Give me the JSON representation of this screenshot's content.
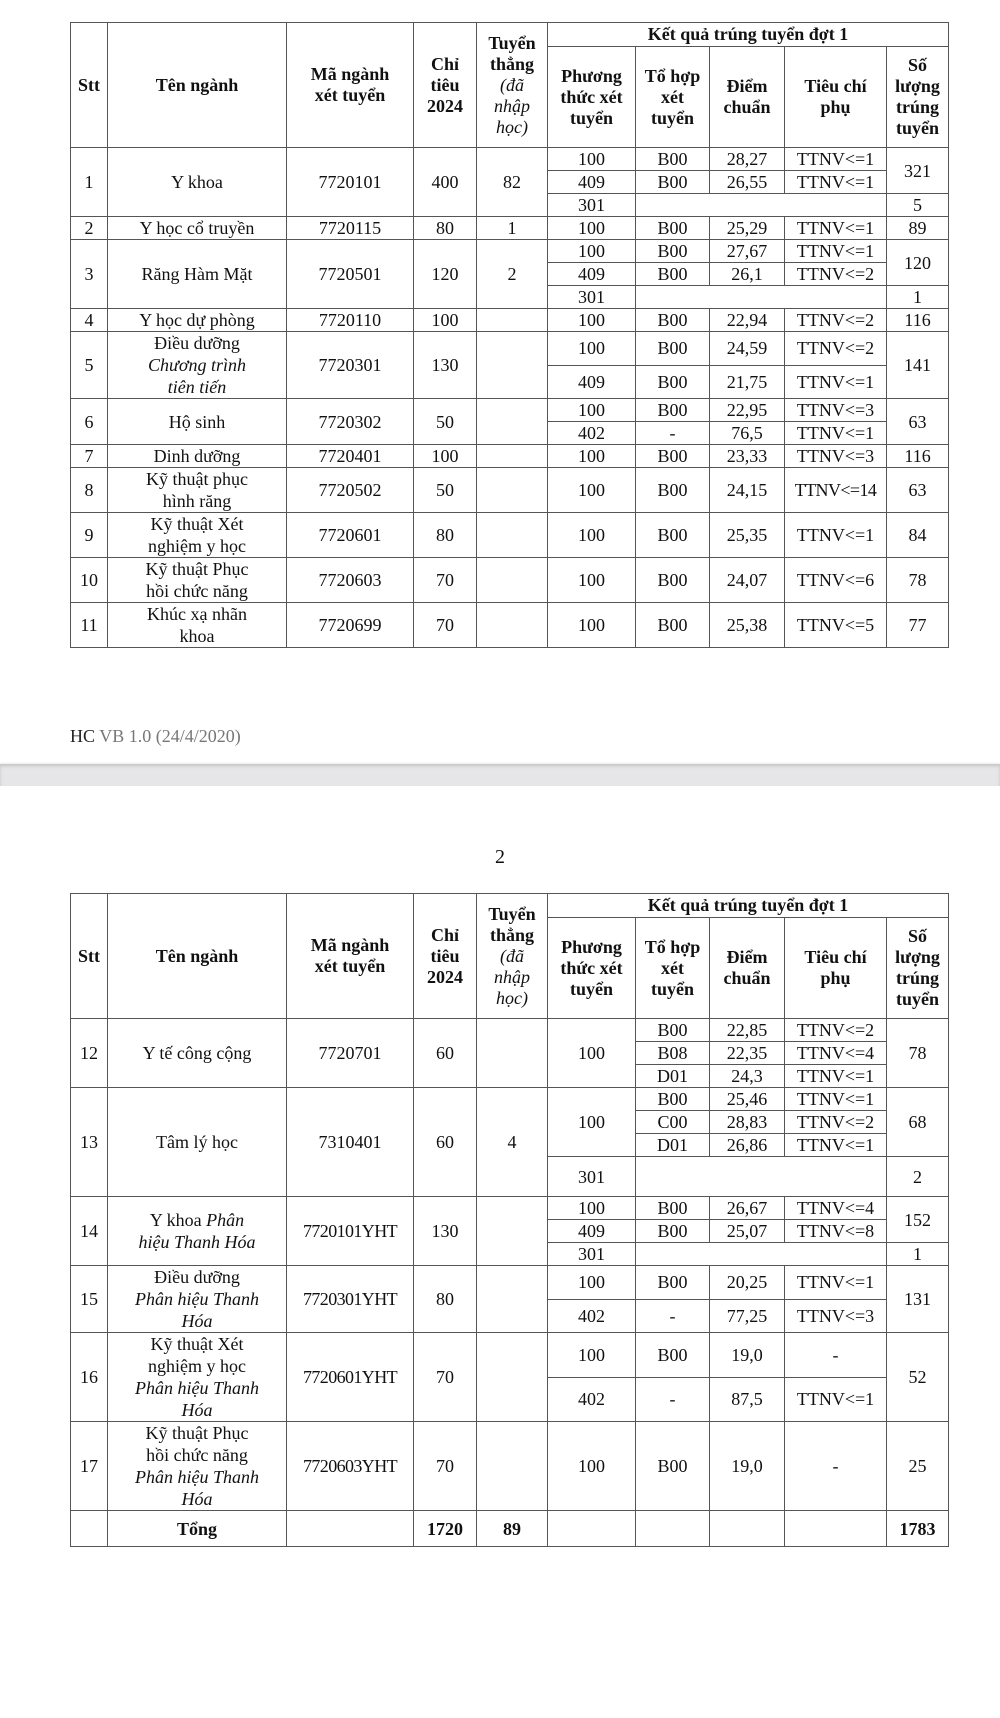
{
  "header": {
    "stt": "Stt",
    "name": "Tên ngành",
    "code": [
      "Mã ngành",
      "xét tuyển"
    ],
    "quota": [
      "Chỉ",
      "tiêu",
      "2024"
    ],
    "direct": [
      "Tuyển",
      "thẳng"
    ],
    "direct_italic": [
      "(đã",
      "nhập",
      "học)"
    ],
    "result_group": "Kết quả trúng tuyển đợt 1",
    "method": [
      "Phương",
      "thức xét",
      "tuyển"
    ],
    "combo": [
      "Tổ hợp",
      "xét",
      "tuyển"
    ],
    "score": [
      "Điểm",
      "chuẩn"
    ],
    "criteria": [
      "Tiêu chí",
      "phụ"
    ],
    "count": [
      "Số",
      "lượng",
      "trúng",
      "tuyển"
    ]
  },
  "table1": [
    {
      "stt": "1",
      "name": [
        {
          "t": "Y khoa"
        }
      ],
      "code": "7720101",
      "quota": "400",
      "direct": "82",
      "subs": [
        {
          "method": "100",
          "combo": "B00",
          "score": "28,27",
          "criteria": "TTNV<=1",
          "count": "321",
          "count_span": 2
        },
        {
          "method": "409",
          "combo": "B00",
          "score": "26,55",
          "criteria": "TTNV<=1"
        },
        {
          "method": "301",
          "merged": true,
          "count": "5"
        }
      ]
    },
    {
      "stt": "2",
      "name": [
        {
          "t": "Y học cổ truyền"
        }
      ],
      "code": "7720115",
      "quota": "80",
      "direct": "1",
      "subs": [
        {
          "method": "100",
          "combo": "B00",
          "score": "25,29",
          "criteria": "TTNV<=1",
          "count": "89"
        }
      ]
    },
    {
      "stt": "3",
      "name": [
        {
          "t": "Răng Hàm Mặt"
        }
      ],
      "code": "7720501",
      "quota": "120",
      "direct": "2",
      "subs": [
        {
          "method": "100",
          "combo": "B00",
          "score": "27,67",
          "criteria": "TTNV<=1",
          "count": "120",
          "count_span": 2
        },
        {
          "method": "409",
          "combo": "B00",
          "score": "26,1",
          "criteria": "TTNV<=2"
        },
        {
          "method": "301",
          "merged": true,
          "count": "1"
        }
      ]
    },
    {
      "stt": "4",
      "name": [
        {
          "t": "Y học dự phòng"
        }
      ],
      "code": "7720110",
      "quota": "100",
      "direct": "",
      "subs": [
        {
          "method": "100",
          "combo": "B00",
          "score": "22,94",
          "criteria": "TTNV<=2",
          "count": "116"
        }
      ]
    },
    {
      "stt": "5",
      "name": [
        {
          "t": "Điều dưỡng"
        },
        {
          "t": "Chương trình",
          "i": true
        },
        {
          "t": "tiên tiến",
          "i": true
        }
      ],
      "code": "7720301",
      "quota": "130",
      "direct": "",
      "subs": [
        {
          "method": "100",
          "combo": "B00",
          "score": "24,59",
          "criteria": "TTNV<=2",
          "count": "141",
          "count_span": 2
        },
        {
          "method": "409",
          "combo": "B00",
          "score": "21,75",
          "criteria": "TTNV<=1"
        }
      ]
    },
    {
      "stt": "6",
      "name": [
        {
          "t": "Hộ sinh"
        }
      ],
      "code": "7720302",
      "quota": "50",
      "direct": "",
      "subs": [
        {
          "method": "100",
          "combo": "B00",
          "score": "22,95",
          "criteria": "TTNV<=3",
          "count": "63",
          "count_span": 2
        },
        {
          "method": "402",
          "combo": "-",
          "score": "76,5",
          "criteria": "TTNV<=1"
        }
      ]
    },
    {
      "stt": "7",
      "name": [
        {
          "t": "Dinh dưỡng"
        }
      ],
      "code": "7720401",
      "quota": "100",
      "direct": "",
      "subs": [
        {
          "method": "100",
          "combo": "B00",
          "score": "23,33",
          "criteria": "TTNV<=3",
          "count": "116"
        }
      ]
    },
    {
      "stt": "8",
      "name": [
        {
          "t": "Kỹ thuật phục"
        },
        {
          "t": "hình răng"
        }
      ],
      "code": "7720502",
      "quota": "50",
      "direct": "",
      "subs": [
        {
          "method": "100",
          "combo": "B00",
          "score": "24,15",
          "criteria": "TTNV<=14",
          "count": "63"
        }
      ]
    },
    {
      "stt": "9",
      "name": [
        {
          "t": "Kỹ thuật Xét"
        },
        {
          "t": "nghiệm y học"
        }
      ],
      "code": "7720601",
      "quota": "80",
      "direct": "",
      "subs": [
        {
          "method": "100",
          "combo": "B00",
          "score": "25,35",
          "criteria": "TTNV<=1",
          "count": "84"
        }
      ]
    },
    {
      "stt": "10",
      "name": [
        {
          "t": "Kỹ thuật Phục"
        },
        {
          "t": "hồi chức năng"
        }
      ],
      "code": "7720603",
      "quota": "70",
      "direct": "",
      "subs": [
        {
          "method": "100",
          "combo": "B00",
          "score": "24,07",
          "criteria": "TTNV<=6",
          "count": "78"
        }
      ]
    },
    {
      "stt": "11",
      "name": [
        {
          "t": "Khúc xạ nhãn"
        },
        {
          "t": "khoa"
        }
      ],
      "code": "7720699",
      "quota": "70",
      "direct": "",
      "subs": [
        {
          "method": "100",
          "combo": "B00",
          "score": "25,38",
          "criteria": "TTNV<=5",
          "count": "77"
        }
      ]
    }
  ],
  "footer": {
    "code": "HC",
    "version": "VB 1.0 (24/4/2020)"
  },
  "page_number": "2",
  "table2": [
    {
      "stt": "12",
      "name": [
        {
          "t": "Y tế công cộng"
        }
      ],
      "code": "7720701",
      "quota": "60",
      "direct": "",
      "subs": [
        {
          "method": "100",
          "method_span": 3,
          "combo": "B00",
          "score": "22,85",
          "criteria": "TTNV<=2",
          "count": "78",
          "count_span": 3
        },
        {
          "combo": "B08",
          "score": "22,35",
          "criteria": "TTNV<=4"
        },
        {
          "combo": "D01",
          "score": "24,3",
          "criteria": "TTNV<=1"
        }
      ]
    },
    {
      "stt": "13",
      "name": [
        {
          "t": "Tâm lý học"
        }
      ],
      "code": "7310401",
      "quota": "60",
      "direct": "4",
      "subs": [
        {
          "method": "100",
          "method_span": 3,
          "combo": "B00",
          "score": "25,46",
          "criteria": "TTNV<=1",
          "count": "68",
          "count_span": 3
        },
        {
          "combo": "C00",
          "score": "28,83",
          "criteria": "TTNV<=2"
        },
        {
          "combo": "D01",
          "score": "26,86",
          "criteria": "TTNV<=1"
        },
        {
          "method": "301",
          "merged": true,
          "count": "2",
          "tall": true
        }
      ]
    },
    {
      "stt": "14",
      "name": [
        {
          "t": "Y khoa "
        },
        {
          "t": "Phân",
          "i": true,
          "inline": true
        },
        {
          "t": "hiệu Thanh Hóa",
          "i": true
        }
      ],
      "code": "7720101YHT",
      "quota": "130",
      "direct": "",
      "subs": [
        {
          "method": "100",
          "combo": "B00",
          "score": "26,67",
          "criteria": "TTNV<=4",
          "count": "152",
          "count_span": 2
        },
        {
          "method": "409",
          "combo": "B00",
          "score": "25,07",
          "criteria": "TTNV<=8"
        },
        {
          "method": "301",
          "merged": true,
          "count": "1"
        }
      ]
    },
    {
      "stt": "15",
      "name": [
        {
          "t": "Điều dưỡng"
        },
        {
          "t": "Phân hiệu Thanh",
          "i": true
        },
        {
          "t": "Hóa",
          "i": true
        }
      ],
      "code": "7720301YHT",
      "quota": "80",
      "direct": "",
      "subs": [
        {
          "method": "100",
          "combo": "B00",
          "score": "20,25",
          "criteria": "TTNV<=1",
          "count": "131",
          "count_span": 2
        },
        {
          "method": "402",
          "combo": "-",
          "score": "77,25",
          "criteria": "TTNV<=3"
        }
      ]
    },
    {
      "stt": "16",
      "name": [
        {
          "t": "Kỹ thuật Xét"
        },
        {
          "t": "nghiệm y học"
        },
        {
          "t": "Phân hiệu Thanh",
          "i": true
        },
        {
          "t": "Hóa",
          "i": true
        }
      ],
      "code": "7720601YHT",
      "quota": "70",
      "direct": "",
      "subs": [
        {
          "method": "100",
          "combo": "B00",
          "score": "19,0",
          "criteria": "-",
          "count": "52",
          "count_span": 2
        },
        {
          "method": "402",
          "combo": "-",
          "score": "87,5",
          "criteria": "TTNV<=1"
        }
      ]
    },
    {
      "stt": "17",
      "name": [
        {
          "t": "Kỹ thuật Phục"
        },
        {
          "t": "hồi chức năng"
        },
        {
          "t": "Phân hiệu Thanh",
          "i": true
        },
        {
          "t": "Hóa",
          "i": true
        }
      ],
      "code": "7720603YHT",
      "quota": "70",
      "direct": "",
      "subs": [
        {
          "method": "100",
          "combo": "B00",
          "score": "19,0",
          "criteria": "-",
          "count": "25"
        }
      ]
    }
  ],
  "total": {
    "label": "Tổng",
    "quota": "1720",
    "direct": "89",
    "count": "1783"
  }
}
